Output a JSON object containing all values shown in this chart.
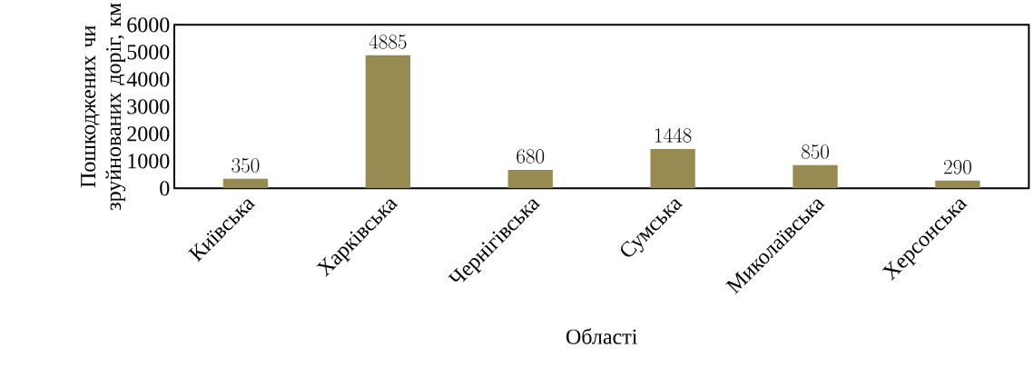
{
  "chart_data": {
    "type": "bar",
    "xlabel": "Області",
    "ylabel": "Пошкоджених чи зруйнованих доріг, км",
    "categories": [
      "Київська",
      "Харківська",
      "Чернігівська",
      "Сумська",
      "Миколаївська",
      "Херсонська"
    ],
    "values": [
      350,
      4885,
      680,
      1448,
      850,
      290
    ],
    "color": "#978b52",
    "ylim": [
      0,
      6000
    ],
    "yticks": [
      0,
      1000,
      2000,
      3000,
      4000,
      5000,
      6000
    ],
    "data_labels": true,
    "grid": false
  }
}
